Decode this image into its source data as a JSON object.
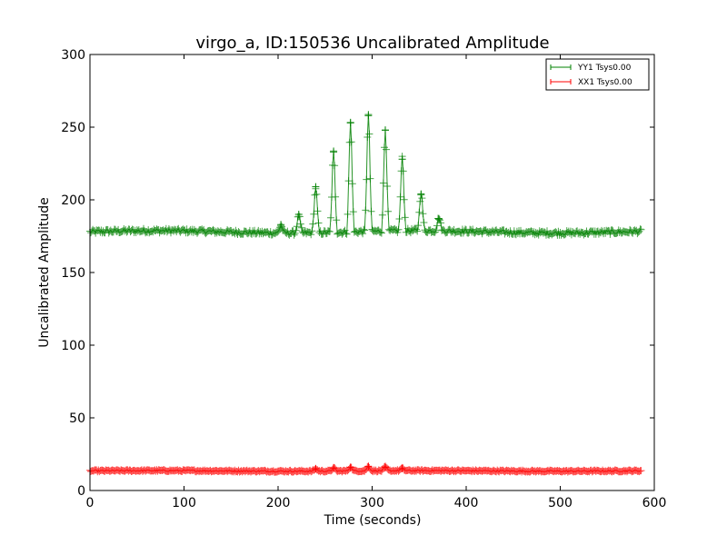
{
  "chart_data": {
    "type": "line",
    "title": "virgo_a, ID:150536 Uncalibrated Amplitude",
    "xlabel": "Time (seconds)",
    "ylabel": "Uncalibrated Amplitude",
    "xlim": [
      0,
      600
    ],
    "ylim": [
      0,
      300
    ],
    "xticks": [
      0,
      100,
      200,
      300,
      400,
      500,
      600
    ],
    "yticks": [
      0,
      50,
      100,
      150,
      200,
      250,
      300
    ],
    "xtick_labels": [
      "0",
      "100",
      "200",
      "300",
      "400",
      "500",
      "600"
    ],
    "ytick_labels": [
      "0",
      "50",
      "100",
      "150",
      "200",
      "250",
      "300"
    ],
    "grid": false,
    "legend_position": "top-right",
    "time_range": [
      0,
      586
    ],
    "series": [
      {
        "name": "YY1 Tsys0.00",
        "color": "#008000",
        "marker": "+",
        "baseline": 178,
        "noise": 1.5,
        "peaks": [
          {
            "t": 203,
            "value": 183
          },
          {
            "t": 222,
            "value": 190
          },
          {
            "t": 240,
            "value": 209
          },
          {
            "t": 259,
            "value": 233
          },
          {
            "t": 277,
            "value": 253
          },
          {
            "t": 296,
            "value": 258
          },
          {
            "t": 314,
            "value": 248
          },
          {
            "t": 332,
            "value": 228
          },
          {
            "t": 352,
            "value": 204
          },
          {
            "t": 371,
            "value": 187
          }
        ]
      },
      {
        "name": "XX1 Tsys0.00",
        "color": "#ff0000",
        "marker": "+",
        "baseline": 13.5,
        "noise": 0.6,
        "peaks": [
          {
            "t": 240,
            "value": 15
          },
          {
            "t": 259,
            "value": 15.5
          },
          {
            "t": 277,
            "value": 16
          },
          {
            "t": 296,
            "value": 16.5
          },
          {
            "t": 314,
            "value": 16
          },
          {
            "t": 332,
            "value": 15
          }
        ]
      }
    ]
  }
}
